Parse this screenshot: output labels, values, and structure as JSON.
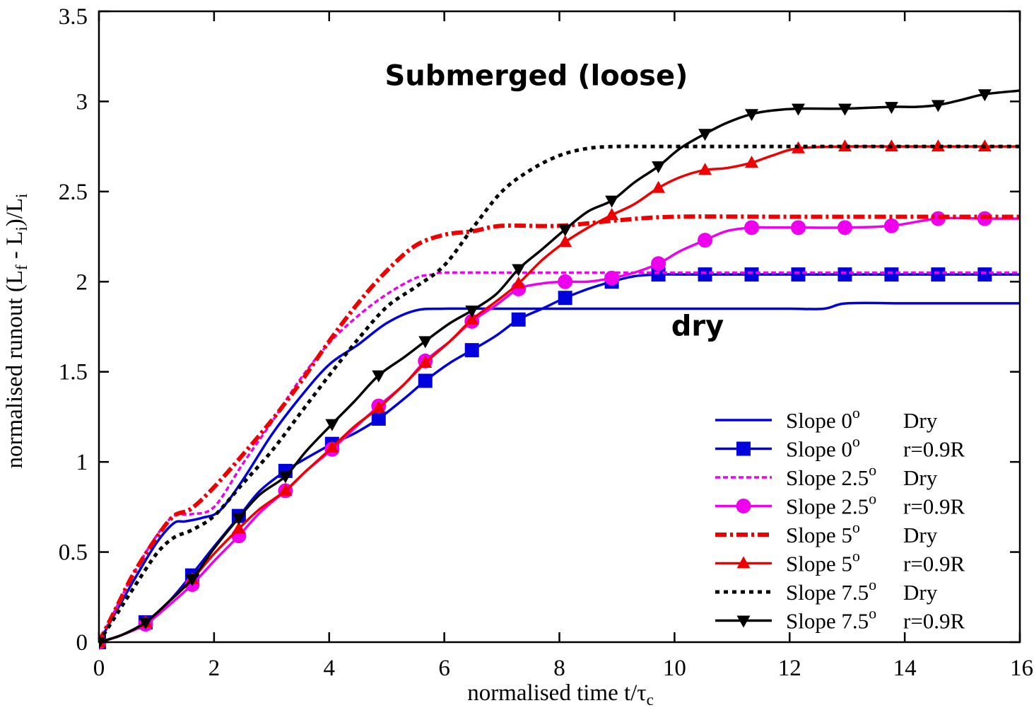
{
  "chart_data": {
    "type": "line",
    "xlabel": "normalised time t/τ",
    "xlabel_sub": "c",
    "ylabel_parts": [
      {
        "t": "normalised runout (L"
      },
      {
        "t": "f",
        "sub": true
      },
      {
        "t": " - L"
      },
      {
        "t": "i",
        "sub": true
      },
      {
        "t": ")/L"
      },
      {
        "t": "i",
        "sub": true
      }
    ],
    "xlim": [
      0,
      16
    ],
    "ylim": [
      0,
      3.5
    ],
    "xticks": [
      "0",
      "2",
      "4",
      "6",
      "8",
      "10",
      "12",
      "14",
      "16"
    ],
    "yticks": [
      "0",
      "0.5",
      "1",
      "1.5",
      "2",
      "2.5",
      "3",
      "3.5"
    ],
    "annotations": [
      {
        "text": "Submerged (loose)",
        "x": 7.6,
        "y": 3.09
      },
      {
        "text": "dry",
        "x": 10.4,
        "y": 1.7
      }
    ],
    "series": [
      {
        "label": "Slope 0",
        "deg": "o",
        "cond": "Dry",
        "color": "#0000dd",
        "width": 3.5,
        "dash": "",
        "marker": "none",
        "x": [
          0,
          0.3,
          0.6,
          1.0,
          1.3,
          1.5,
          1.8,
          2.1,
          2.5,
          3.0,
          3.5,
          4.0,
          4.5,
          5.0,
          5.5,
          6.0,
          7.0,
          8.0,
          9.0,
          10.0,
          11.0,
          12.0,
          12.6,
          13.0,
          14.0,
          15.0,
          16.0
        ],
        "y": [
          0,
          0.17,
          0.34,
          0.55,
          0.66,
          0.67,
          0.69,
          0.73,
          0.9,
          1.15,
          1.36,
          1.54,
          1.65,
          1.77,
          1.84,
          1.85,
          1.85,
          1.85,
          1.85,
          1.85,
          1.85,
          1.85,
          1.85,
          1.88,
          1.88,
          1.88,
          1.88
        ]
      },
      {
        "label": "Slope 0",
        "deg": "o",
        "cond": "r=0.9R",
        "color": "#0000dd",
        "width": 3.5,
        "dash": "",
        "marker": "square",
        "x": [
          0,
          0.4,
          0.8,
          1.2,
          1.6,
          2.0,
          2.44,
          2.8,
          3.24,
          3.6,
          4.05,
          4.45,
          4.86,
          5.3,
          5.67,
          6.1,
          6.48,
          6.9,
          7.29,
          7.7,
          8.1,
          8.5,
          8.91,
          9.3,
          9.72,
          10.1,
          10.53,
          11.34,
          12.15,
          12.96,
          13.77,
          14.58,
          15.39,
          16.0
        ],
        "y": [
          0,
          0.04,
          0.11,
          0.22,
          0.37,
          0.53,
          0.7,
          0.84,
          0.95,
          1.02,
          1.1,
          1.16,
          1.24,
          1.35,
          1.45,
          1.55,
          1.62,
          1.7,
          1.79,
          1.85,
          1.91,
          1.96,
          2.0,
          2.03,
          2.04,
          2.04,
          2.04,
          2.04,
          2.04,
          2.04,
          2.04,
          2.04,
          2.04,
          2.04
        ],
        "marker_x": [
          0,
          0.81,
          1.62,
          2.43,
          3.24,
          4.05,
          4.86,
          5.67,
          6.48,
          7.29,
          8.1,
          8.91,
          9.72,
          10.53,
          11.34,
          12.15,
          12.96,
          13.77,
          14.58,
          15.39
        ],
        "marker_y": [
          0,
          0.11,
          0.37,
          0.7,
          0.95,
          1.1,
          1.24,
          1.45,
          1.62,
          1.79,
          1.91,
          2.0,
          2.04,
          2.04,
          2.04,
          2.04,
          2.04,
          2.04,
          2.04,
          2.04
        ]
      },
      {
        "label": "Slope 2.5",
        "deg": "o",
        "cond": "Dry",
        "color": "#ee00ee",
        "width": 3.5,
        "dash": "7,4",
        "marker": "none",
        "x": [
          0,
          0.3,
          0.6,
          1.0,
          1.3,
          1.6,
          2.0,
          2.5,
          3.0,
          3.5,
          4.0,
          4.5,
          5.0,
          5.5,
          5.8,
          6.0,
          7.0,
          8.0,
          10.0,
          12.0,
          14.0,
          16.0
        ],
        "y": [
          0,
          0.19,
          0.38,
          0.59,
          0.7,
          0.71,
          0.75,
          0.99,
          1.22,
          1.46,
          1.66,
          1.81,
          1.93,
          2.02,
          2.04,
          2.05,
          2.05,
          2.05,
          2.05,
          2.05,
          2.05,
          2.05
        ]
      },
      {
        "label": "Slope 2.5",
        "deg": "o",
        "cond": "r=0.9R",
        "color": "#ee00ee",
        "width": 3.5,
        "dash": "",
        "marker": "circle",
        "x": [
          0,
          0.4,
          0.81,
          1.2,
          1.62,
          2.0,
          2.43,
          2.8,
          3.24,
          3.6,
          4.05,
          4.45,
          4.86,
          5.3,
          5.67,
          6.1,
          6.48,
          6.9,
          7.29,
          7.7,
          8.1,
          8.5,
          8.91,
          9.3,
          9.72,
          10.1,
          10.53,
          10.9,
          11.34,
          11.7,
          12.15,
          12.96,
          13.77,
          14.58,
          15.39,
          16.0
        ],
        "y": [
          0,
          0.04,
          0.1,
          0.2,
          0.32,
          0.45,
          0.59,
          0.72,
          0.84,
          0.95,
          1.07,
          1.19,
          1.31,
          1.43,
          1.56,
          1.67,
          1.78,
          1.87,
          1.96,
          1.99,
          2.0,
          2.0,
          2.02,
          2.05,
          2.1,
          2.17,
          2.23,
          2.28,
          2.3,
          2.3,
          2.3,
          2.3,
          2.31,
          2.35,
          2.35,
          2.35
        ],
        "marker_x": [
          0,
          0.81,
          1.62,
          2.43,
          3.24,
          4.05,
          4.86,
          5.67,
          6.48,
          7.29,
          8.1,
          8.91,
          9.72,
          10.53,
          11.34,
          12.15,
          12.96,
          13.77,
          14.58,
          15.39
        ],
        "marker_y": [
          0,
          0.1,
          0.32,
          0.59,
          0.84,
          1.07,
          1.31,
          1.56,
          1.78,
          1.96,
          2.0,
          2.02,
          2.1,
          2.23,
          2.3,
          2.3,
          2.3,
          2.31,
          2.35,
          2.35
        ]
      },
      {
        "label": "Slope 5",
        "deg": "o",
        "cond": "Dry",
        "color": "#ee0000",
        "width": 6,
        "dash": "16,5,4,5",
        "marker": "none",
        "x": [
          0,
          0.3,
          0.6,
          1.0,
          1.3,
          1.6,
          2.0,
          2.5,
          3.0,
          3.5,
          4.0,
          4.5,
          5.0,
          5.5,
          6.0,
          6.5,
          7.0,
          8.0,
          9.0,
          10.0,
          12.0,
          14.0,
          16.0
        ],
        "y": [
          0,
          0.19,
          0.38,
          0.58,
          0.7,
          0.74,
          0.86,
          1.04,
          1.23,
          1.44,
          1.67,
          1.88,
          2.06,
          2.2,
          2.26,
          2.28,
          2.31,
          2.31,
          2.34,
          2.36,
          2.36,
          2.36,
          2.36
        ]
      },
      {
        "label": "Slope 5",
        "deg": "o",
        "cond": "r=0.9R",
        "color": "#ee0000",
        "width": 3.5,
        "dash": "",
        "marker": "triangle-up",
        "x": [
          0,
          0.4,
          0.81,
          1.2,
          1.62,
          2.0,
          2.43,
          2.8,
          3.24,
          3.6,
          4.05,
          4.45,
          4.86,
          5.3,
          5.67,
          6.1,
          6.48,
          6.9,
          7.29,
          7.7,
          8.1,
          8.5,
          8.91,
          9.3,
          9.72,
          10.1,
          10.53,
          10.9,
          11.34,
          11.7,
          12.15,
          12.96,
          13.77,
          14.58,
          15.39,
          16.0
        ],
        "y": [
          0,
          0.04,
          0.11,
          0.22,
          0.35,
          0.49,
          0.63,
          0.74,
          0.84,
          0.95,
          1.08,
          1.2,
          1.3,
          1.43,
          1.55,
          1.67,
          1.79,
          1.89,
          1.99,
          2.12,
          2.22,
          2.3,
          2.37,
          2.43,
          2.52,
          2.58,
          2.62,
          2.63,
          2.66,
          2.7,
          2.74,
          2.75,
          2.75,
          2.75,
          2.75,
          2.75
        ],
        "marker_x": [
          0,
          0.81,
          1.62,
          2.43,
          3.24,
          4.05,
          4.86,
          5.67,
          6.48,
          7.29,
          8.1,
          8.91,
          9.72,
          10.53,
          11.34,
          12.15,
          12.96,
          13.77,
          14.58,
          15.39
        ],
        "marker_y": [
          0,
          0.11,
          0.35,
          0.63,
          0.84,
          1.08,
          1.3,
          1.55,
          1.79,
          1.99,
          2.22,
          2.37,
          2.52,
          2.62,
          2.66,
          2.74,
          2.75,
          2.75,
          2.75,
          2.75
        ]
      },
      {
        "label": "Slope 7.5",
        "deg": "o",
        "cond": "Dry",
        "color": "#000000",
        "width": 5,
        "dash": "6,6",
        "marker": "none",
        "x": [
          0,
          0.3,
          0.6,
          1.0,
          1.3,
          1.6,
          2.0,
          2.5,
          3.0,
          3.5,
          4.0,
          4.5,
          5.0,
          5.5,
          6.0,
          6.5,
          7.0,
          7.5,
          8.0,
          8.5,
          9.0,
          9.5,
          10.0,
          12.0,
          14.0,
          16.0
        ],
        "y": [
          0,
          0.15,
          0.3,
          0.49,
          0.58,
          0.62,
          0.7,
          0.88,
          1.06,
          1.27,
          1.48,
          1.68,
          1.86,
          1.97,
          2.09,
          2.3,
          2.5,
          2.62,
          2.7,
          2.74,
          2.75,
          2.75,
          2.75,
          2.75,
          2.75,
          2.75
        ]
      },
      {
        "label": "Slope 7.5",
        "deg": "o",
        "cond": "r=0.9R",
        "color": "#000000",
        "width": 3.5,
        "dash": "",
        "marker": "triangle-down",
        "x": [
          0,
          0.4,
          0.81,
          1.2,
          1.62,
          2.0,
          2.43,
          2.8,
          3.24,
          3.6,
          4.05,
          4.45,
          4.86,
          5.3,
          5.67,
          6.1,
          6.48,
          6.9,
          7.29,
          7.7,
          8.1,
          8.5,
          8.91,
          9.3,
          9.72,
          10.1,
          10.53,
          10.9,
          11.34,
          11.7,
          12.15,
          12.96,
          13.77,
          14.2,
          14.58,
          15.0,
          15.39,
          16.0
        ],
        "y": [
          0,
          0.04,
          0.11,
          0.22,
          0.35,
          0.52,
          0.69,
          0.82,
          0.92,
          1.06,
          1.21,
          1.34,
          1.48,
          1.58,
          1.67,
          1.77,
          1.84,
          1.93,
          2.07,
          2.18,
          2.29,
          2.39,
          2.45,
          2.55,
          2.64,
          2.74,
          2.82,
          2.88,
          2.93,
          2.95,
          2.96,
          2.96,
          2.97,
          2.97,
          2.98,
          3.01,
          3.04,
          3.06
        ],
        "marker_x": [
          0,
          0.81,
          1.62,
          2.43,
          3.24,
          4.05,
          4.86,
          5.67,
          6.48,
          7.29,
          8.1,
          8.91,
          9.72,
          10.53,
          11.34,
          12.15,
          12.96,
          13.77,
          14.58,
          15.39
        ],
        "marker_y": [
          0,
          0.11,
          0.35,
          0.69,
          0.92,
          1.21,
          1.48,
          1.67,
          1.84,
          2.07,
          2.29,
          2.45,
          2.64,
          2.82,
          2.93,
          2.96,
          2.96,
          2.97,
          2.98,
          3.04
        ]
      }
    ],
    "legend_position": "bottom-right"
  }
}
